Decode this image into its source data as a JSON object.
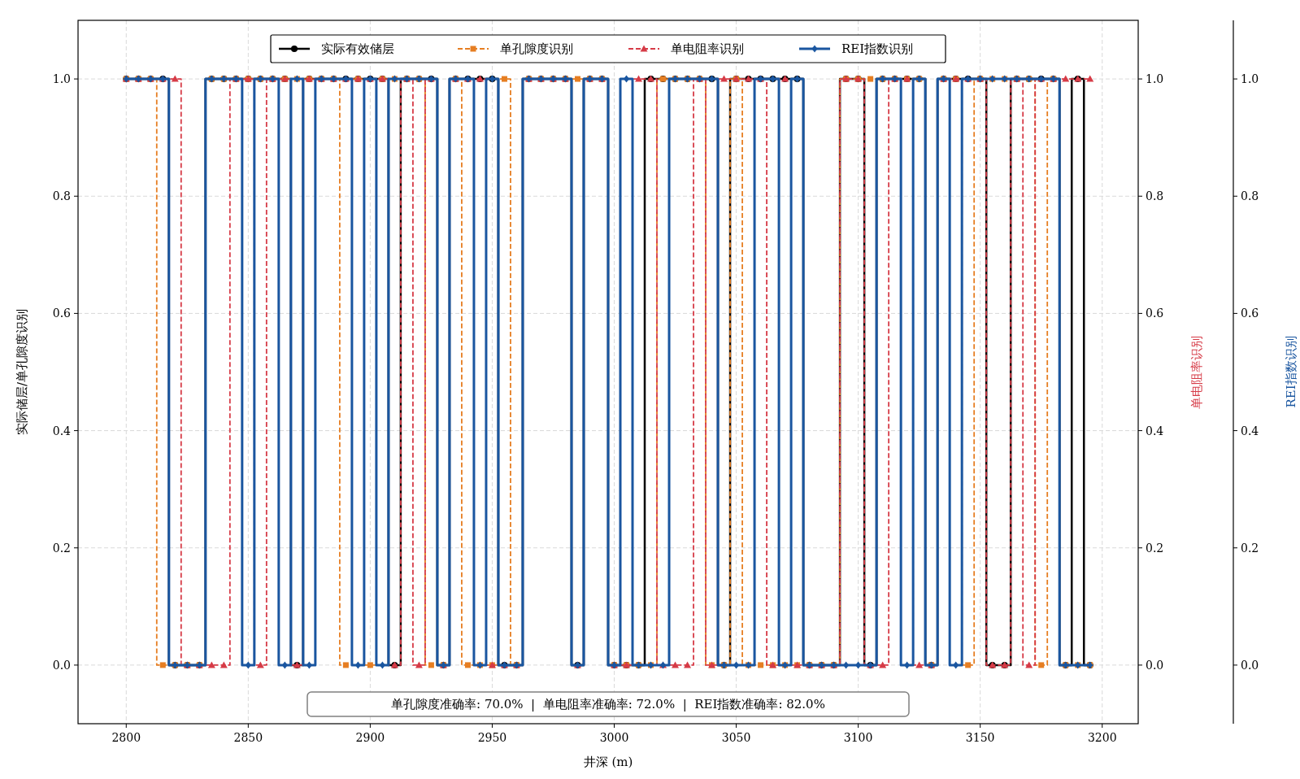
{
  "chart_data": {
    "type": "step",
    "xlabel": "井深 (m)",
    "ylabel": "实际储层/单孔隙度识别",
    "y2label": "单电阻率识别",
    "y3label": "REI指数识别",
    "x": [
      2800,
      2805,
      2810,
      2815,
      2820,
      2825,
      2830,
      2835,
      2840,
      2845,
      2850,
      2855,
      2860,
      2865,
      2870,
      2875,
      2880,
      2885,
      2890,
      2895,
      2900,
      2905,
      2910,
      2915,
      2920,
      2925,
      2930,
      2935,
      2940,
      2945,
      2950,
      2955,
      2960,
      2965,
      2970,
      2975,
      2980,
      2985,
      2990,
      2995,
      3000,
      3005,
      3010,
      3015,
      3020,
      3025,
      3030,
      3035,
      3040,
      3045,
      3050,
      3055,
      3060,
      3065,
      3070,
      3075,
      3080,
      3085,
      3090,
      3095,
      3100,
      3105,
      3110,
      3115,
      3120,
      3125,
      3130,
      3135,
      3140,
      3145,
      3150,
      3155,
      3160,
      3165,
      3170,
      3175,
      3180,
      3185,
      3190,
      3195
    ],
    "xlim": [
      2780.25,
      3214.75
    ],
    "xticks": [
      2800,
      2850,
      2900,
      2950,
      3000,
      3050,
      3100,
      3150,
      3200
    ],
    "ylim": [
      -0.1,
      1.1
    ],
    "yticks": [
      {
        "value": 0,
        "label": "0.0"
      },
      {
        "value": 0.2,
        "label": "0.2"
      },
      {
        "value": 0.4,
        "label": "0.4"
      },
      {
        "value": 0.6,
        "label": "0.6"
      },
      {
        "value": 0.8,
        "label": "0.8"
      },
      {
        "value": 1,
        "label": "1.0"
      }
    ],
    "y2lim": [
      -0.1,
      1.1
    ],
    "y2ticks": [
      {
        "value": 0,
        "label": "0.0"
      },
      {
        "value": 0.2,
        "label": "0.2"
      },
      {
        "value": 0.4,
        "label": "0.4"
      },
      {
        "value": 0.6,
        "label": "0.6"
      },
      {
        "value": 0.8,
        "label": "0.8"
      },
      {
        "value": 1,
        "label": "1.0"
      }
    ],
    "y3lim": [
      -0.1,
      1.1
    ],
    "y3ticks": [
      {
        "value": 0,
        "label": "0.0"
      },
      {
        "value": 0.2,
        "label": "0.2"
      },
      {
        "value": 0.4,
        "label": "0.4"
      },
      {
        "value": 0.6,
        "label": "0.6"
      },
      {
        "value": 0.8,
        "label": "0.8"
      },
      {
        "value": 1,
        "label": "1.0"
      }
    ],
    "grid": true,
    "legend": "top",
    "series": [
      {
        "name": "实际有效储层",
        "color": "#000000",
        "marker": "circle",
        "line_style": "solid",
        "axis": "y",
        "values": [
          1,
          1,
          1,
          1,
          0,
          0,
          0,
          1,
          1,
          1,
          1,
          1,
          1,
          1,
          0,
          1,
          1,
          1,
          1,
          1,
          1,
          1,
          0,
          1,
          1,
          1,
          0,
          1,
          1,
          1,
          1,
          0,
          0,
          1,
          1,
          1,
          1,
          0,
          1,
          1,
          0,
          0,
          0,
          1,
          1,
          1,
          1,
          1,
          1,
          0,
          1,
          1,
          1,
          1,
          1,
          1,
          0,
          0,
          0,
          1,
          1,
          0,
          1,
          1,
          1,
          1,
          0,
          1,
          1,
          1,
          1,
          0,
          0,
          1,
          1,
          1,
          1,
          0,
          1,
          0
        ]
      },
      {
        "name": "单孔隙度识别",
        "color": "#e67e22",
        "marker": "square",
        "line_style": "dashed",
        "axis": "y",
        "values": [
          1,
          1,
          1,
          0,
          0,
          0,
          0,
          1,
          1,
          1,
          1,
          1,
          1,
          1,
          1,
          1,
          1,
          1,
          0,
          1,
          0,
          1,
          1,
          1,
          1,
          0,
          0,
          1,
          0,
          0,
          0,
          1,
          0,
          1,
          1,
          1,
          1,
          1,
          1,
          1,
          0,
          0,
          0,
          0,
          1,
          1,
          1,
          1,
          0,
          0,
          1,
          0,
          0,
          0,
          0,
          0,
          0,
          0,
          0,
          1,
          1,
          1,
          1,
          1,
          1,
          1,
          0,
          1,
          1,
          0,
          1,
          1,
          1,
          1,
          1,
          0,
          1,
          0,
          0,
          0
        ]
      },
      {
        "name": "单电阻率识别",
        "color": "#d63b47",
        "marker": "triangle",
        "line_style": "dashed",
        "axis": "y2",
        "values": [
          1,
          1,
          1,
          1,
          1,
          0,
          0,
          0,
          0,
          1,
          1,
          0,
          1,
          1,
          0,
          1,
          1,
          1,
          1,
          1,
          1,
          1,
          0,
          1,
          0,
          1,
          0,
          1,
          1,
          1,
          0,
          0,
          0,
          1,
          1,
          1,
          1,
          0,
          1,
          1,
          0,
          0,
          1,
          1,
          0,
          0,
          0,
          1,
          0,
          1,
          1,
          1,
          1,
          0,
          1,
          0,
          0,
          0,
          0,
          1,
          1,
          0,
          0,
          1,
          1,
          0,
          0,
          1,
          1,
          1,
          1,
          0,
          0,
          1,
          0,
          1,
          1,
          1,
          1,
          1
        ]
      },
      {
        "name": "REI指数识别",
        "color": "#1a56a0",
        "marker": "diamond",
        "line_style": "solid",
        "axis": "y3",
        "values": [
          1,
          1,
          1,
          1,
          0,
          0,
          0,
          1,
          1,
          1,
          0,
          1,
          1,
          0,
          1,
          0,
          1,
          1,
          1,
          0,
          1,
          0,
          1,
          1,
          1,
          1,
          0,
          1,
          1,
          0,
          1,
          0,
          0,
          1,
          1,
          1,
          1,
          0,
          1,
          1,
          0,
          1,
          0,
          0,
          0,
          1,
          1,
          1,
          1,
          0,
          0,
          0,
          1,
          1,
          0,
          1,
          0,
          0,
          0,
          0,
          0,
          0,
          1,
          1,
          0,
          1,
          0,
          1,
          0,
          1,
          1,
          1,
          1,
          1,
          1,
          1,
          1,
          0,
          0,
          0
        ]
      }
    ],
    "annotations": [
      "单孔隙度准确率: 70.0%  |  单电阻率准确率: 72.0%  |  REI指数准确率: 82.0%"
    ]
  }
}
